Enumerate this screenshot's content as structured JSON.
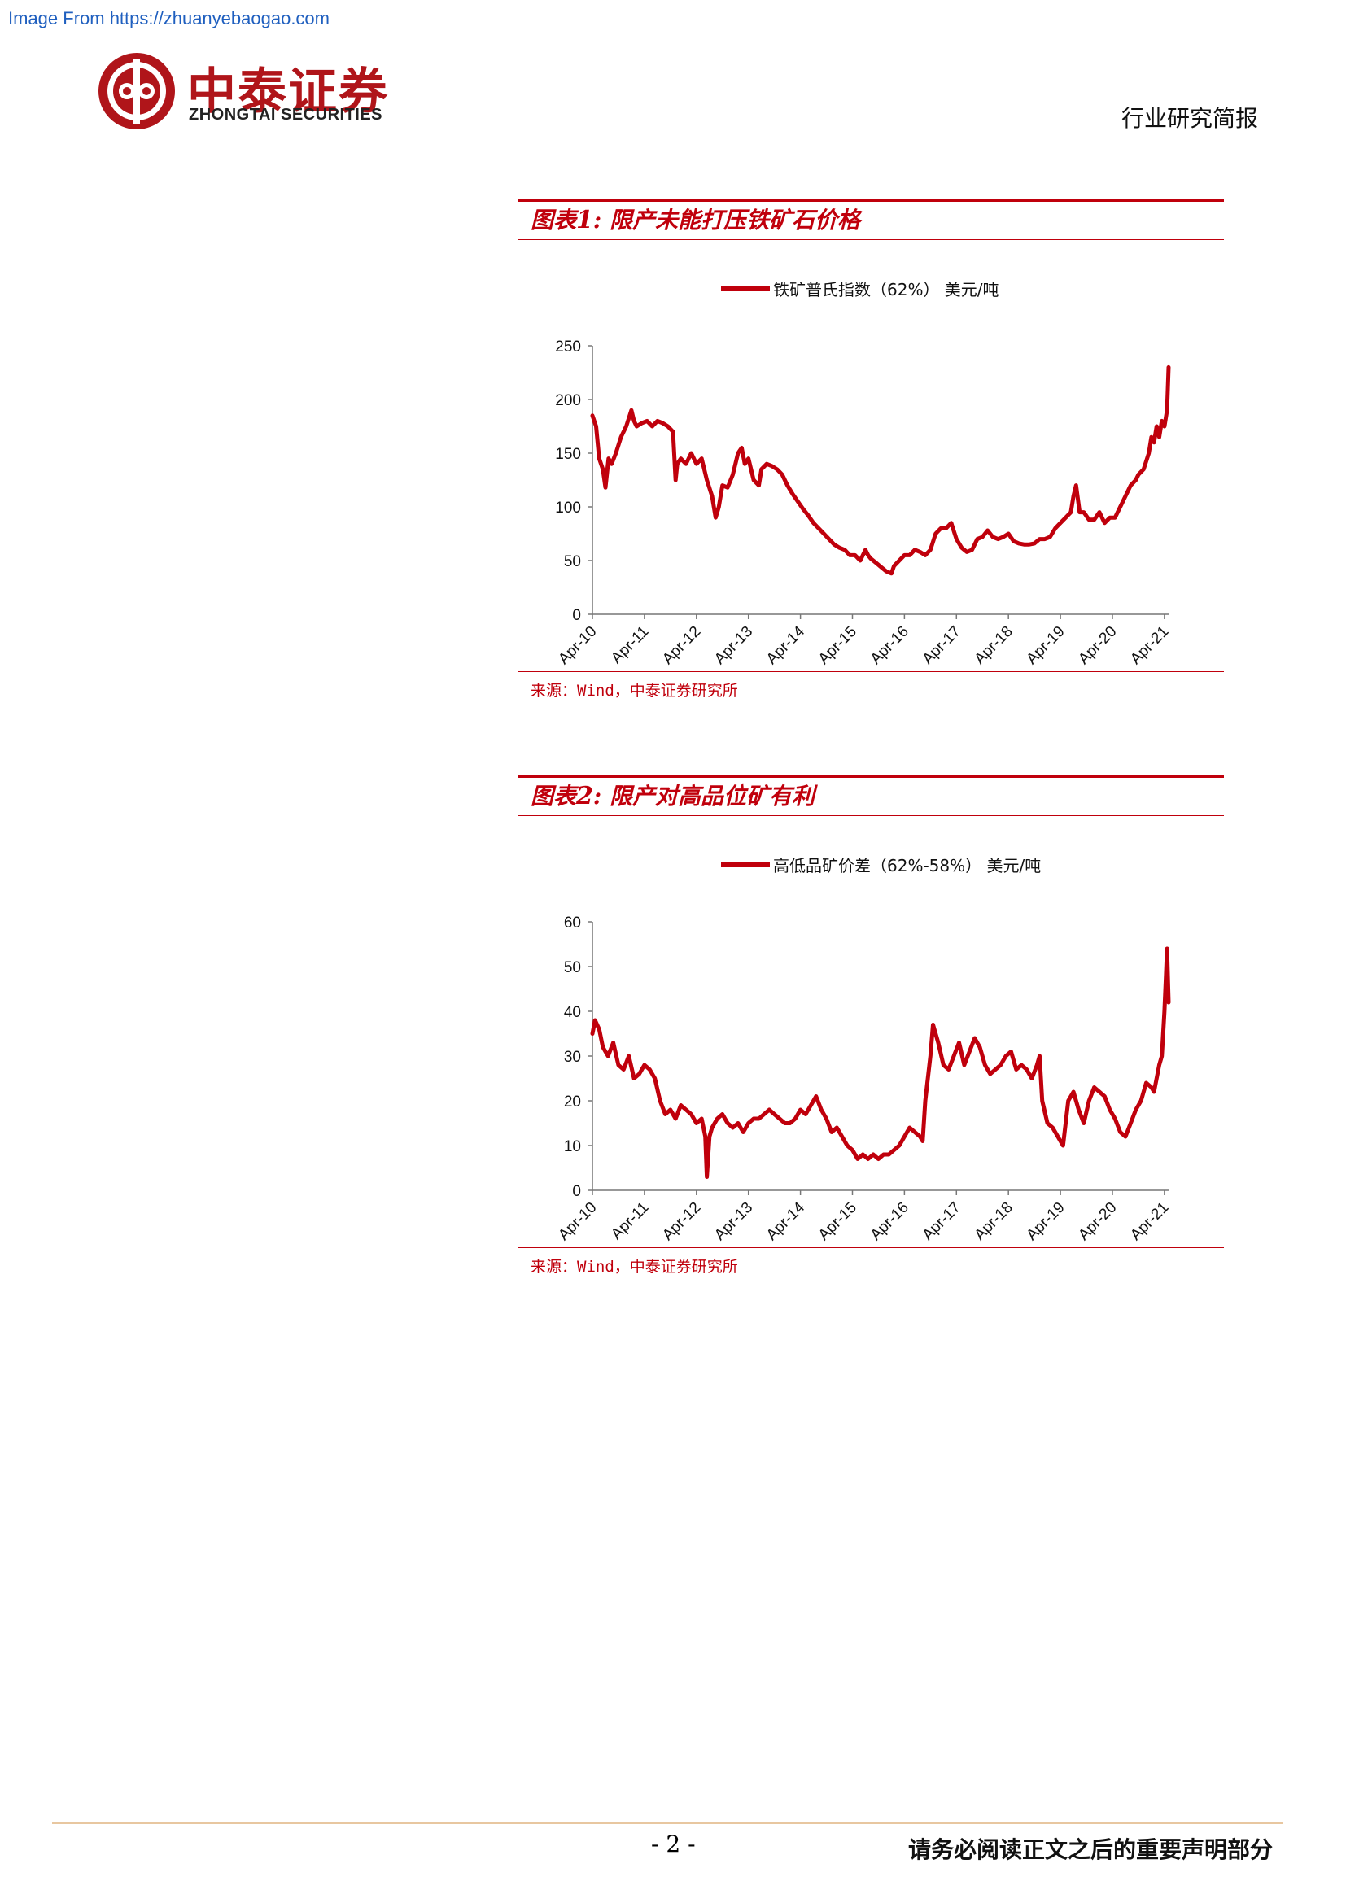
{
  "header": {
    "source_link": "Image From https://zhuanyebaogao.com",
    "logo_cn": "中泰证券",
    "logo_en": "ZHONGTAI SECURITIES",
    "report_type": "行业研究简报"
  },
  "figures": [
    {
      "title_prefix": "图表",
      "title_num": "1",
      "title_text": "限产未能打压铁矿石价格",
      "legend": "铁矿普氏指数（62%） 美元/吨",
      "source": "来源：Wind，中泰证券研究所"
    },
    {
      "title_prefix": "图表",
      "title_num": "2",
      "title_text": "限产对高品位矿有利",
      "legend": "高低品矿价差（62%-58%） 美元/吨",
      "source": "来源：Wind，中泰证券研究所"
    }
  ],
  "chart_data": [
    {
      "type": "line",
      "title": "",
      "xlabel": "",
      "ylabel": "",
      "ylim": [
        0,
        250
      ],
      "yticks": [
        0,
        50,
        100,
        150,
        200,
        250
      ],
      "xticks": [
        "Apr-10",
        "Apr-11",
        "Apr-12",
        "Apr-13",
        "Apr-14",
        "Apr-15",
        "Apr-16",
        "Apr-17",
        "Apr-18",
        "Apr-19",
        "Apr-20",
        "Apr-21"
      ],
      "x_range": [
        2010.25,
        2021.33
      ],
      "grid": false,
      "legend_position": "top",
      "color": "#c0000c",
      "series": [
        {
          "name": "铁矿普氏指数（62%） 美元/吨",
          "x": [
            2010.25,
            2010.32,
            2010.38,
            2010.45,
            2010.5,
            2010.56,
            2010.62,
            2010.7,
            2010.8,
            2010.9,
            2011.0,
            2011.05,
            2011.1,
            2011.2,
            2011.3,
            2011.4,
            2011.5,
            2011.6,
            2011.7,
            2011.8,
            2011.85,
            2011.88,
            2011.95,
            2012.05,
            2012.15,
            2012.25,
            2012.35,
            2012.45,
            2012.55,
            2012.62,
            2012.68,
            2012.75,
            2012.85,
            2012.95,
            2013.05,
            2013.12,
            2013.18,
            2013.25,
            2013.35,
            2013.45,
            2013.5,
            2013.6,
            2013.7,
            2013.8,
            2013.9,
            2014.0,
            2014.1,
            2014.2,
            2014.3,
            2014.4,
            2014.5,
            2014.6,
            2014.7,
            2014.8,
            2014.9,
            2015.0,
            2015.1,
            2015.2,
            2015.3,
            2015.4,
            2015.5,
            2015.55,
            2015.6,
            2015.7,
            2015.8,
            2015.9,
            2016.0,
            2016.05,
            2016.15,
            2016.25,
            2016.35,
            2016.45,
            2016.55,
            2016.65,
            2016.75,
            2016.85,
            2016.95,
            2017.05,
            2017.15,
            2017.25,
            2017.35,
            2017.45,
            2017.55,
            2017.65,
            2017.75,
            2017.85,
            2017.95,
            2018.05,
            2018.15,
            2018.25,
            2018.35,
            2018.45,
            2018.55,
            2018.65,
            2018.75,
            2018.85,
            2018.95,
            2019.05,
            2019.15,
            2019.25,
            2019.35,
            2019.45,
            2019.5,
            2019.55,
            2019.62,
            2019.7,
            2019.8,
            2019.9,
            2020.0,
            2020.1,
            2020.2,
            2020.3,
            2020.4,
            2020.5,
            2020.6,
            2020.7,
            2020.75,
            2020.85,
            2020.95,
            2021.0,
            2021.05,
            2021.1,
            2021.15,
            2021.2,
            2021.25,
            2021.3,
            2021.33
          ],
          "values": [
            185,
            175,
            145,
            135,
            118,
            145,
            140,
            150,
            165,
            175,
            190,
            180,
            175,
            178,
            180,
            175,
            180,
            178,
            175,
            170,
            125,
            140,
            145,
            140,
            150,
            140,
            145,
            125,
            110,
            90,
            100,
            120,
            118,
            130,
            150,
            155,
            140,
            145,
            125,
            120,
            135,
            140,
            138,
            135,
            130,
            120,
            112,
            105,
            98,
            92,
            85,
            80,
            75,
            70,
            65,
            62,
            60,
            55,
            55,
            50,
            60,
            55,
            52,
            48,
            44,
            40,
            38,
            45,
            50,
            55,
            55,
            60,
            58,
            55,
            60,
            75,
            80,
            80,
            85,
            70,
            62,
            58,
            60,
            70,
            72,
            78,
            72,
            70,
            72,
            75,
            68,
            66,
            65,
            65,
            66,
            70,
            70,
            72,
            80,
            85,
            90,
            95,
            110,
            120,
            95,
            95,
            88,
            88,
            95,
            85,
            90,
            90,
            100,
            110,
            120,
            125,
            130,
            135,
            150,
            165,
            160,
            175,
            165,
            180,
            175,
            190,
            230
          ]
        }
      ]
    },
    {
      "type": "line",
      "title": "",
      "xlabel": "",
      "ylabel": "",
      "ylim": [
        0,
        60
      ],
      "yticks": [
        0,
        10,
        20,
        30,
        40,
        50,
        60
      ],
      "xticks": [
        "Apr-10",
        "Apr-11",
        "Apr-12",
        "Apr-13",
        "Apr-14",
        "Apr-15",
        "Apr-16",
        "Apr-17",
        "Apr-18",
        "Apr-19",
        "Apr-20",
        "Apr-21"
      ],
      "x_range": [
        2010.25,
        2021.33
      ],
      "grid": false,
      "legend_position": "top",
      "color": "#c0000c",
      "series": [
        {
          "name": "高低品矿价差（62%-58%） 美元/吨",
          "x": [
            2010.25,
            2010.3,
            2010.38,
            2010.45,
            2010.55,
            2010.65,
            2010.75,
            2010.85,
            2010.95,
            2011.05,
            2011.15,
            2011.25,
            2011.35,
            2011.45,
            2011.55,
            2011.65,
            2011.75,
            2011.85,
            2011.95,
            2012.05,
            2012.15,
            2012.25,
            2012.35,
            2012.42,
            2012.45,
            2012.5,
            2012.55,
            2012.65,
            2012.75,
            2012.85,
            2012.95,
            2013.05,
            2013.15,
            2013.25,
            2013.35,
            2013.45,
            2013.55,
            2013.65,
            2013.75,
            2013.85,
            2013.95,
            2014.05,
            2014.15,
            2014.25,
            2014.35,
            2014.45,
            2014.55,
            2014.65,
            2014.75,
            2014.85,
            2014.95,
            2015.05,
            2015.15,
            2015.25,
            2015.35,
            2015.45,
            2015.55,
            2015.65,
            2015.75,
            2015.85,
            2015.95,
            2016.05,
            2016.15,
            2016.25,
            2016.35,
            2016.45,
            2016.55,
            2016.6,
            2016.65,
            2016.75,
            2016.8,
            2016.9,
            2017.0,
            2017.1,
            2017.2,
            2017.3,
            2017.4,
            2017.5,
            2017.6,
            2017.7,
            2017.8,
            2017.9,
            2018.0,
            2018.1,
            2018.2,
            2018.3,
            2018.4,
            2018.5,
            2018.6,
            2018.7,
            2018.8,
            2018.85,
            2018.9,
            2019.0,
            2019.1,
            2019.2,
            2019.3,
            2019.4,
            2019.5,
            2019.6,
            2019.7,
            2019.8,
            2019.9,
            2020.0,
            2020.1,
            2020.2,
            2020.3,
            2020.4,
            2020.5,
            2020.6,
            2020.7,
            2020.8,
            2020.9,
            2021.0,
            2021.05,
            2021.1,
            2021.15,
            2021.2,
            2021.25,
            2021.28,
            2021.3,
            2021.33
          ],
          "values": [
            35,
            38,
            36,
            32,
            30,
            33,
            28,
            27,
            30,
            25,
            26,
            28,
            27,
            25,
            20,
            17,
            18,
            16,
            19,
            18,
            17,
            15,
            16,
            12,
            3,
            12,
            14,
            16,
            17,
            15,
            14,
            15,
            13,
            15,
            16,
            16,
            17,
            18,
            17,
            16,
            15,
            15,
            16,
            18,
            17,
            19,
            21,
            18,
            16,
            13,
            14,
            12,
            10,
            9,
            7,
            8,
            7,
            8,
            7,
            8,
            8,
            9,
            10,
            12,
            14,
            13,
            12,
            11,
            20,
            30,
            37,
            33,
            28,
            27,
            30,
            33,
            28,
            31,
            34,
            32,
            28,
            26,
            27,
            28,
            30,
            31,
            27,
            28,
            27,
            25,
            28,
            30,
            20,
            15,
            14,
            12,
            10,
            20,
            22,
            18,
            15,
            20,
            23,
            22,
            21,
            18,
            16,
            13,
            12,
            15,
            18,
            20,
            24,
            23,
            22,
            25,
            28,
            30,
            40,
            48,
            54,
            42
          ]
        }
      ]
    }
  ]
}
